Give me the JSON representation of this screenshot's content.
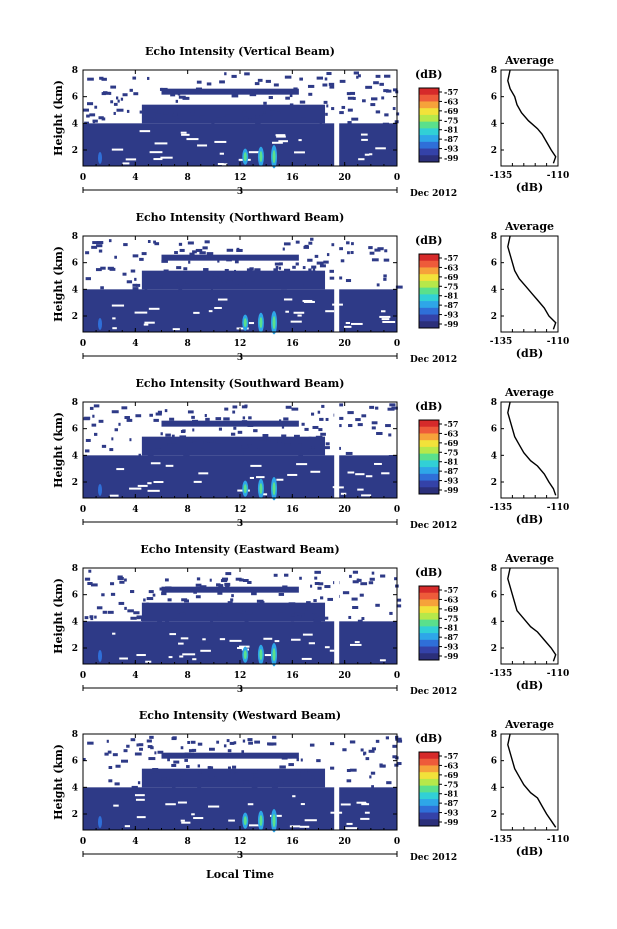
{
  "figure": {
    "xlabel": "Local Time",
    "date_label": "Dec 2012",
    "day_label": "3",
    "ylabel": "Height (km)",
    "colorbar_unit": "(dB)",
    "avg_title": "Average",
    "avg_xlabel": "(dB)"
  },
  "colors": {
    "background_fill": "#2e3a87",
    "palette": [
      "#2b2f7a",
      "#3442a8",
      "#2f6fd8",
      "#2ea6e8",
      "#31d0d6",
      "#5ae08c",
      "#b6e84a",
      "#f2e23a",
      "#f6a23a",
      "#ee5b3a",
      "#d62a2a"
    ]
  },
  "chart_data": [
    {
      "type": "heatmap",
      "title": "Echo Intensity (Vertical Beam)",
      "xlabel": "Local Time",
      "ylabel": "Height (km)",
      "x_ticks": [
        "0",
        "4",
        "8",
        "12",
        "16",
        "20",
        "0"
      ],
      "xlim": [
        0,
        24
      ],
      "ylim": [
        0.8,
        8
      ],
      "y_ticks": [
        "2",
        "4",
        "6",
        "8"
      ],
      "colorbar_ticks": [
        "-57",
        "-63",
        "-69",
        "-75",
        "-81",
        "-87",
        "-93",
        "-99"
      ],
      "avg_profile": {
        "xlim": [
          -135,
          -110
        ],
        "x_ticks": [
          "-135",
          "-110"
        ],
        "y_ticks": [
          "2",
          "4",
          "6",
          "8"
        ],
        "points": [
          [
            -112,
            1
          ],
          [
            -111,
            1.5
          ],
          [
            -113,
            2
          ],
          [
            -115,
            2.6
          ],
          [
            -117,
            3.2
          ],
          [
            -119,
            3.6
          ],
          [
            -123,
            4.2
          ],
          [
            -126,
            4.8
          ],
          [
            -128,
            5.4
          ],
          [
            -129,
            6
          ],
          [
            -131,
            6.6
          ],
          [
            -132,
            7.2
          ],
          [
            -131,
            8
          ]
        ]
      }
    },
    {
      "type": "heatmap",
      "title": "Echo Intensity (Northward Beam)",
      "xlabel": "Local Time",
      "ylabel": "Height (km)",
      "x_ticks": [
        "0",
        "4",
        "8",
        "12",
        "16",
        "20",
        "0"
      ],
      "xlim": [
        0,
        24
      ],
      "ylim": [
        0.8,
        8
      ],
      "y_ticks": [
        "2",
        "4",
        "6",
        "8"
      ],
      "colorbar_ticks": [
        "-57",
        "-63",
        "-69",
        "-75",
        "-81",
        "-87",
        "-93",
        "-99"
      ],
      "avg_profile": {
        "xlim": [
          -135,
          -110
        ],
        "x_ticks": [
          "-135",
          "-110"
        ],
        "y_ticks": [
          "2",
          "4",
          "6",
          "8"
        ],
        "points": [
          [
            -112,
            1
          ],
          [
            -111,
            1.5
          ],
          [
            -114,
            2
          ],
          [
            -116,
            2.6
          ],
          [
            -119,
            3.2
          ],
          [
            -121,
            3.6
          ],
          [
            -124,
            4.2
          ],
          [
            -127,
            4.8
          ],
          [
            -129,
            5.4
          ],
          [
            -130,
            6
          ],
          [
            -131,
            6.6
          ],
          [
            -132,
            7.2
          ],
          [
            -131,
            8
          ]
        ]
      }
    },
    {
      "type": "heatmap",
      "title": "Echo Intensity (Southward Beam)",
      "xlabel": "Local Time",
      "ylabel": "Height (km)",
      "x_ticks": [
        "0",
        "4",
        "8",
        "12",
        "16",
        "20",
        "0"
      ],
      "xlim": [
        0,
        24
      ],
      "ylim": [
        0.8,
        8
      ],
      "y_ticks": [
        "2",
        "4",
        "6",
        "8"
      ],
      "colorbar_ticks": [
        "-57",
        "-63",
        "-69",
        "-75",
        "-81",
        "-87",
        "-93",
        "-99"
      ],
      "avg_profile": {
        "xlim": [
          -135,
          -110
        ],
        "x_ticks": [
          "-135",
          "-110"
        ],
        "y_ticks": [
          "2",
          "4",
          "6",
          "8"
        ],
        "points": [
          [
            -111,
            1
          ],
          [
            -112,
            1.5
          ],
          [
            -114,
            2
          ],
          [
            -116,
            2.6
          ],
          [
            -119,
            3.2
          ],
          [
            -122,
            3.6
          ],
          [
            -125,
            4.2
          ],
          [
            -127,
            4.8
          ],
          [
            -129,
            5.4
          ],
          [
            -130,
            6
          ],
          [
            -131,
            6.6
          ],
          [
            -132,
            7.2
          ],
          [
            -131,
            8
          ]
        ]
      }
    },
    {
      "type": "heatmap",
      "title": "Echo Intensity (Eastward Beam)",
      "xlabel": "Local Time",
      "ylabel": "Height (km)",
      "x_ticks": [
        "0",
        "4",
        "8",
        "12",
        "16",
        "20",
        "0"
      ],
      "xlim": [
        0,
        24
      ],
      "ylim": [
        0.8,
        8
      ],
      "y_ticks": [
        "2",
        "4",
        "6",
        "8"
      ],
      "colorbar_ticks": [
        "-57",
        "-63",
        "-69",
        "-75",
        "-81",
        "-87",
        "-93",
        "-99"
      ],
      "avg_profile": {
        "xlim": [
          -135,
          -110
        ],
        "x_ticks": [
          "-135",
          "-110"
        ],
        "y_ticks": [
          "2",
          "4",
          "6",
          "8"
        ],
        "points": [
          [
            -112,
            1
          ],
          [
            -111,
            1.5
          ],
          [
            -113,
            2
          ],
          [
            -116,
            2.6
          ],
          [
            -119,
            3.2
          ],
          [
            -122,
            3.6
          ],
          [
            -125,
            4.2
          ],
          [
            -128,
            4.8
          ],
          [
            -129,
            5.4
          ],
          [
            -130,
            6
          ],
          [
            -131,
            6.6
          ],
          [
            -132,
            7.2
          ],
          [
            -131,
            8
          ]
        ]
      }
    },
    {
      "type": "heatmap",
      "title": "Echo Intensity (Westward Beam)",
      "xlabel": "Local Time",
      "ylabel": "Height (km)",
      "x_ticks": [
        "0",
        "4",
        "8",
        "12",
        "16",
        "20",
        "0"
      ],
      "xlim": [
        0,
        24
      ],
      "ylim": [
        0.8,
        8
      ],
      "y_ticks": [
        "2",
        "4",
        "6",
        "8"
      ],
      "colorbar_ticks": [
        "-57",
        "-63",
        "-69",
        "-75",
        "-81",
        "-87",
        "-93",
        "-99"
      ],
      "avg_profile": {
        "xlim": [
          -135,
          -110
        ],
        "x_ticks": [
          "-135",
          "-110"
        ],
        "y_ticks": [
          "2",
          "4",
          "6",
          "8"
        ],
        "points": [
          [
            -111,
            1
          ],
          [
            -113,
            1.5
          ],
          [
            -115,
            2
          ],
          [
            -117,
            2.6
          ],
          [
            -119,
            3.2
          ],
          [
            -122,
            3.6
          ],
          [
            -125,
            4.2
          ],
          [
            -127,
            4.8
          ],
          [
            -129,
            5.4
          ],
          [
            -130,
            6
          ],
          [
            -131,
            6.6
          ],
          [
            -132,
            7.2
          ],
          [
            -131,
            8
          ]
        ]
      }
    }
  ]
}
